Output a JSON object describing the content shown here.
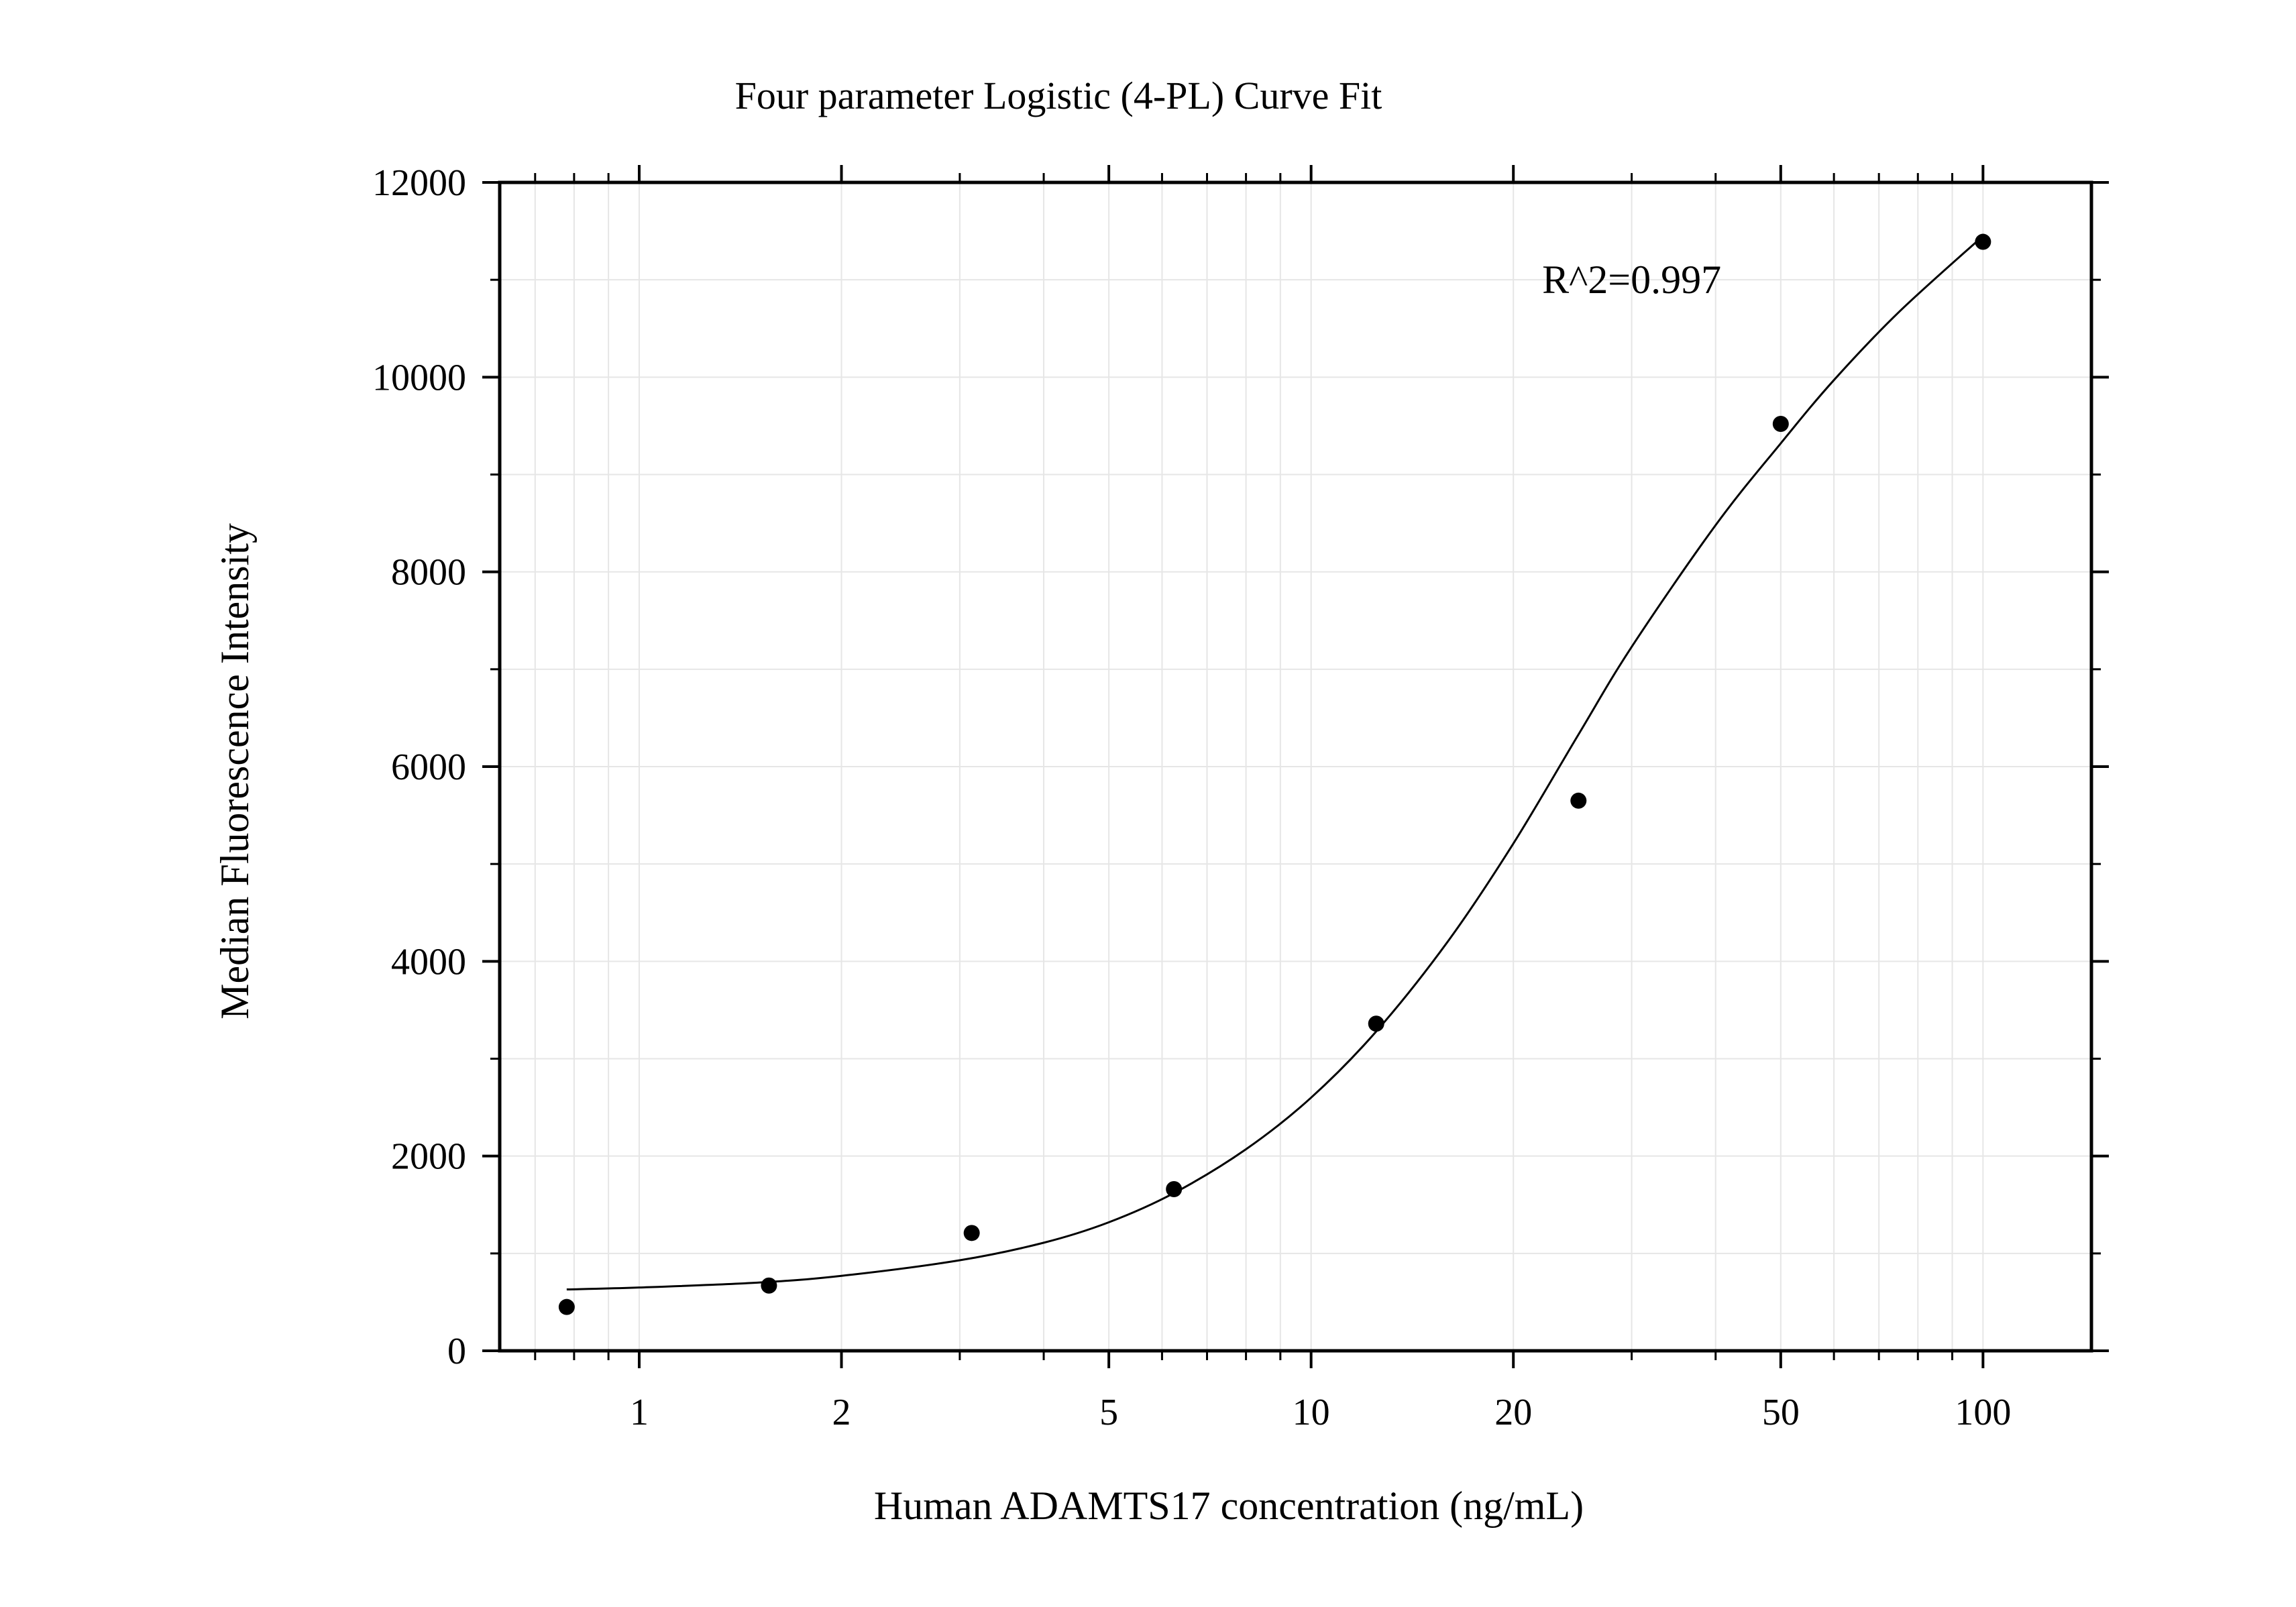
{
  "chart_data": {
    "type": "scatter",
    "title": "Four parameter Logistic (4-PL) Curve Fit",
    "xlabel": "Human ADAMTS17 concentration (ng/mL)",
    "ylabel": "Median Fluorescence Intensity",
    "x_scale": "log",
    "xlim": [
      0.62,
      145
    ],
    "ylim": [
      0,
      12000
    ],
    "x_ticks": [
      1,
      2,
      5,
      10,
      20,
      50,
      100
    ],
    "x_tick_labels": [
      "1",
      "2",
      "5",
      "10",
      "20",
      "50",
      "100"
    ],
    "y_ticks": [
      0,
      2000,
      4000,
      6000,
      8000,
      10000,
      12000
    ],
    "y_tick_labels": [
      "0",
      "2000",
      "4000",
      "6000",
      "8000",
      "10000",
      "12000"
    ],
    "grid": true,
    "legend": "none",
    "series": [
      {
        "kind": "points",
        "marker_color": "#000000",
        "x": [
          0.78,
          1.56,
          3.125,
          6.25,
          12.5,
          25,
          50,
          100
        ],
        "y": [
          450,
          670,
          1210,
          1660,
          3360,
          5650,
          9520,
          11390
        ]
      },
      {
        "kind": "fit-curve",
        "line_color": "#000000",
        "x": [
          0.78,
          1.0,
          1.5,
          2.0,
          3.0,
          4.0,
          5.0,
          6.25,
          8.0,
          10.0,
          12.5,
          16.0,
          20.0,
          25.0,
          30.0,
          40.0,
          50.0,
          60.0,
          75.0,
          100.0
        ],
        "y": [
          630,
          650,
          700,
          770,
          930,
          1110,
          1320,
          1620,
          2070,
          2600,
          3280,
          4210,
          5210,
          6330,
          7230,
          8480,
          9320,
          9970,
          10670,
          11450
        ]
      }
    ],
    "annotations": [
      {
        "text": "R^2=0.997",
        "x": 30,
        "y": 11000
      }
    ]
  },
  "colors": {
    "background": "#ffffff",
    "grid": "#e6e6e6",
    "axis": "#000000",
    "data": "#000000"
  }
}
